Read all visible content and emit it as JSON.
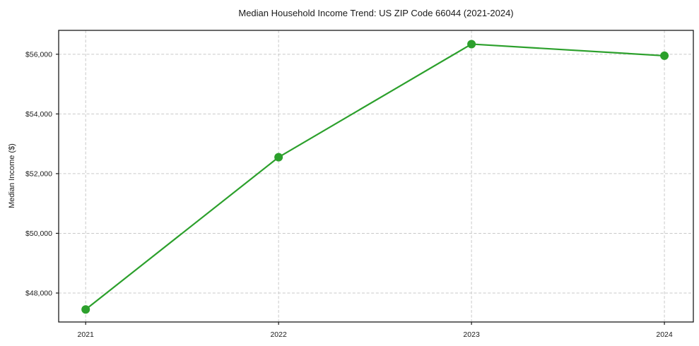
{
  "chart_data": {
    "type": "line",
    "title": "Median Household Income Trend: US ZIP Code 66044 (2021-2024)",
    "xlabel": "",
    "ylabel": "Median Income ($)",
    "categories": [
      "2021",
      "2022",
      "2023",
      "2024"
    ],
    "x": [
      2021,
      2022,
      2023,
      2024
    ],
    "values": [
      47450,
      52550,
      56340,
      55950
    ],
    "xlim": [
      2020.86,
      2024.15
    ],
    "ylim": [
      47030,
      56800
    ],
    "yticks": [
      48000,
      50000,
      52000,
      54000,
      56000
    ],
    "ytick_labels": [
      "$48,000",
      "$50,000",
      "$52,000",
      "$54,000",
      "$56,000"
    ],
    "grid": true,
    "grid_style": "dashed",
    "legend_position": "none",
    "marker": "circle",
    "marker_radius": 6,
    "line_width": 2.2,
    "colors": {
      "line": "#2ca02c",
      "marker": "#2ca02c",
      "grid": "#c9c9c9",
      "axis": "#1a1a1a",
      "text": "#1a1a1a",
      "background": "#ffffff"
    }
  }
}
